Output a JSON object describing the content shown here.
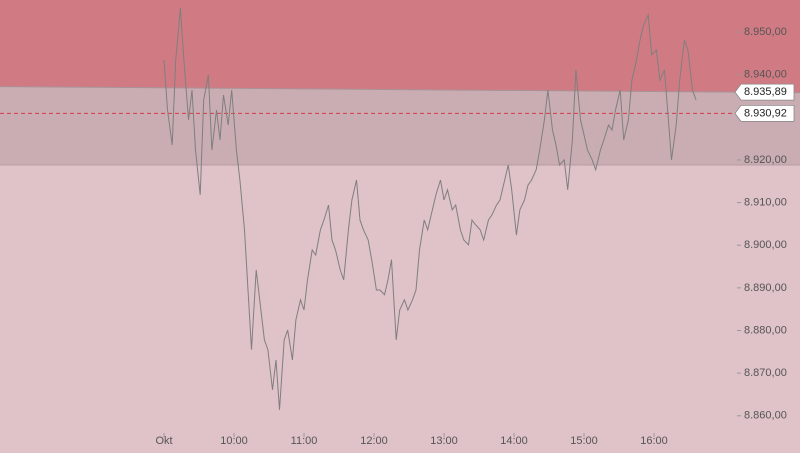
{
  "chart_data": {
    "type": "line",
    "x": [
      0,
      3,
      7,
      10,
      14,
      17,
      21,
      24,
      27,
      31,
      34,
      38,
      41,
      45,
      48,
      51,
      55,
      58,
      62,
      65,
      69,
      72,
      75,
      79,
      82,
      86,
      89,
      93,
      96,
      99,
      103,
      106,
      110,
      113,
      117,
      120,
      123,
      127,
      130,
      134,
      137,
      141,
      144,
      147,
      151,
      154,
      158,
      161,
      165,
      168,
      171,
      175,
      178,
      182,
      185,
      189,
      192,
      195,
      199,
      202,
      206,
      209,
      213,
      216,
      219,
      223,
      226,
      230,
      233,
      237,
      240,
      243,
      247,
      250,
      254,
      257,
      261,
      264,
      267,
      271,
      274,
      278,
      281,
      285,
      288,
      291,
      295,
      298,
      302,
      305,
      309,
      312,
      315,
      319,
      322,
      326,
      329,
      333,
      336,
      339,
      343,
      346,
      350,
      353,
      357,
      360,
      363,
      367,
      370,
      374,
      377,
      381,
      384,
      387,
      391,
      394,
      398,
      401,
      405,
      408,
      411,
      415,
      418,
      422,
      425,
      429,
      432,
      435,
      439,
      442,
      446,
      449,
      453,
      456
    ],
    "series": [
      {
        "color": "#7f7f7f",
        "values": [
          8943.4,
          8931.7,
          8923.5,
          8943.4,
          8955.6,
          8943.4,
          8929.4,
          8936.4,
          8922.3,
          8911.8,
          8934.1,
          8939.9,
          8922.3,
          8931.7,
          8924.7,
          8935.2,
          8928.2,
          8936.4,
          8922.3,
          8915.3,
          8903.6,
          8889.5,
          8875.5,
          8894.2,
          8887.2,
          8877.8,
          8875.5,
          8866.1,
          8873.1,
          8861.4,
          8877.8,
          8880.1,
          8873.1,
          8882.5,
          8887.2,
          8884.8,
          8891.9,
          8898.9,
          8897.7,
          8903.6,
          8905.9,
          8909.4,
          8901.2,
          8898.9,
          8894.2,
          8891.9,
          8903.6,
          8910.6,
          8915.3,
          8905.9,
          8903.6,
          8901.2,
          8896.6,
          8889.5,
          8889.5,
          8888.4,
          8891.9,
          8896.6,
          8877.8,
          8884.8,
          8887.2,
          8884.8,
          8887.2,
          8889.5,
          8898.9,
          8905.9,
          8903.6,
          8908.3,
          8911.8,
          8915.3,
          8910.6,
          8913.0,
          8908.3,
          8909.4,
          8903.6,
          8901.2,
          8900.1,
          8905.9,
          8904.8,
          8903.6,
          8901.2,
          8905.9,
          8907.1,
          8909.4,
          8910.6,
          8914.1,
          8918.8,
          8913.0,
          8902.4,
          8908.3,
          8910.6,
          8914.1,
          8915.3,
          8917.7,
          8922.3,
          8929.4,
          8936.4,
          8927.0,
          8923.5,
          8918.8,
          8920.0,
          8913.0,
          8924.7,
          8941.1,
          8929.4,
          8925.9,
          8922.3,
          8920.0,
          8917.7,
          8922.3,
          8924.7,
          8928.2,
          8927.0,
          8931.7,
          8936.4,
          8924.7,
          8929.4,
          8938.7,
          8943.4,
          8948.1,
          8951.6,
          8954.0,
          8944.6,
          8945.8,
          8938.7,
          8941.1,
          8930.5,
          8920.0,
          8928.2,
          8938.7,
          8948.1,
          8945.8,
          8936.4,
          8934.1
        ]
      }
    ],
    "xlim": [
      -140.6,
      489.4
    ],
    "xticks": [
      {
        "value": 0,
        "label": "Okt"
      },
      {
        "value": 60,
        "label": "10:00"
      },
      {
        "value": 120,
        "label": "11:00"
      },
      {
        "value": 180,
        "label": "12:00"
      },
      {
        "value": 240,
        "label": "13:00"
      },
      {
        "value": 300,
        "label": "14:00"
      },
      {
        "value": 360,
        "label": "15:00"
      },
      {
        "value": 420,
        "label": "16:00"
      }
    ],
    "ylim": [
      8856.2,
      8957.5
    ],
    "yticks": [
      {
        "value": 8860,
        "label": "8.860,00"
      },
      {
        "value": 8870,
        "label": "8.870,00"
      },
      {
        "value": 8880,
        "label": "8.880,00"
      },
      {
        "value": 8890,
        "label": "8.890,00"
      },
      {
        "value": 8900,
        "label": "8.900,00"
      },
      {
        "value": 8910,
        "label": "8.910,00"
      },
      {
        "value": 8920,
        "label": "8.920,00"
      },
      {
        "value": 8930,
        "label": "8.930,00"
      },
      {
        "value": 8940,
        "label": "8.940,00"
      },
      {
        "value": 8950,
        "label": "8.950,00"
      }
    ],
    "trend_line": {
      "start": 8937.2,
      "end": 8935.89,
      "label": "8.935,89"
    },
    "support": 8918.8,
    "last_price": {
      "value": 8930.92,
      "label": "8.930,92"
    }
  }
}
